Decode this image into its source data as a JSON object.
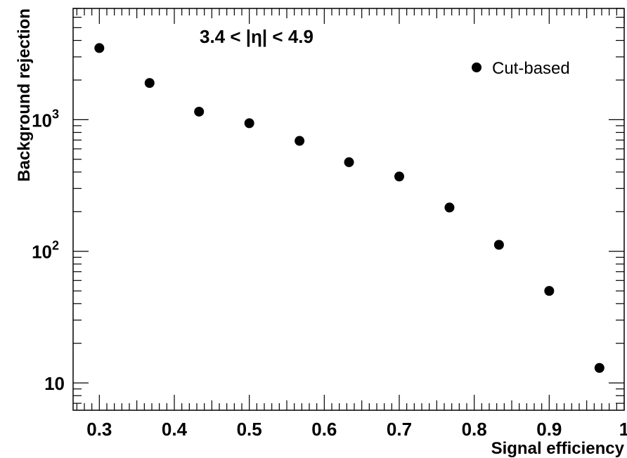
{
  "chart_data": {
    "type": "scatter",
    "xlabel": "Signal efficiency",
    "ylabel": "Background rejection",
    "annotation": "3.4 < |η| < 4.9",
    "xlim": [
      0.265,
      1.0
    ],
    "ylim": [
      6.2,
      7000
    ],
    "y_scale": "log",
    "grid": false,
    "legend_position": "top-right",
    "x_tick_labels": [
      "0.3",
      "0.4",
      "0.5",
      "0.6",
      "0.7",
      "0.8",
      "0.9",
      "1"
    ],
    "x_tick_values": [
      0.3,
      0.4,
      0.5,
      0.6,
      0.7,
      0.8,
      0.9,
      1.0
    ],
    "y_tick_labels": [
      {
        "value": 10,
        "base": "10",
        "exp": ""
      },
      {
        "value": 100,
        "base": "10",
        "exp": "2"
      },
      {
        "value": 1000,
        "base": "10",
        "exp": "3"
      }
    ],
    "series": [
      {
        "name": "Cut-based",
        "marker": "circle",
        "color": "#000000",
        "x": [
          0.3,
          0.367,
          0.433,
          0.5,
          0.567,
          0.633,
          0.7,
          0.767,
          0.833,
          0.9,
          0.967
        ],
        "y": [
          3500,
          1900,
          1150,
          940,
          690,
          475,
          370,
          215,
          112,
          50,
          13
        ]
      }
    ]
  }
}
